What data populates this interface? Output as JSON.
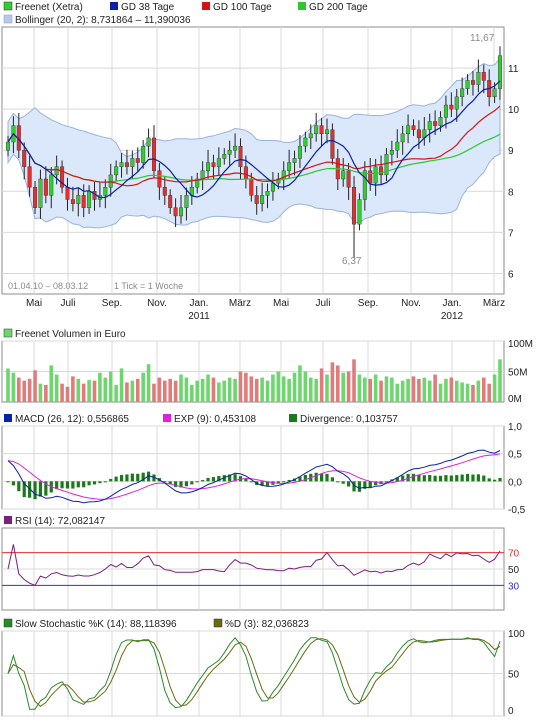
{
  "colors": {
    "frame": "#8c8c8c",
    "grid": "#d9d9d9",
    "band_fill": "#dbe8fb",
    "band_line": "#9ab3d8",
    "candle_up": "#33cc33",
    "candle_down": "#e03030",
    "wick": "#222222",
    "gd38": "#0a22a8",
    "gd100": "#d41414",
    "gd200": "#2ec72e",
    "vol_up": "#6ed66e",
    "vol_down": "#df7b7b",
    "macd": "#0a22a8",
    "exp": "#e020e0",
    "divergence": "#1a7a1a",
    "rsi": "#7a207a",
    "rsi_70": "#e03030",
    "rsi_30": "#3030c8",
    "stoch_k": "#2a8a2a",
    "stoch_d": "#6a6a10",
    "muted_text": "#8a8a8a"
  },
  "legend": {
    "freenet": "Freenet (Xetra)",
    "gd38": "GD 38 Tage",
    "gd100": "GD 100 Tage",
    "gd200": "GD 200 Tage",
    "bollinger": "Bollinger (20, 2): 8,731864 – 11,390036",
    "volume": "Freenet Volumen in Euro",
    "macd": "MACD (26, 12): 0,556865",
    "exp": "EXP (9): 0,453108",
    "divergence": "Divergence: 0,103757",
    "rsi": "RSI (14): 72,082147",
    "stoch_k": "Slow Stochastic %K (14): 88,118396",
    "stoch_d": "%D (3): 82,036823"
  },
  "price_annotations": {
    "period": "01.04.10 – 08.03.12",
    "tick": "1 Tick = 1 Woche",
    "high_label": "11,67",
    "low_label": "6,37"
  },
  "x_axis": {
    "months": [
      "Mai",
      "Juli",
      "Sep.",
      "Nov.",
      "Jan.",
      "März",
      "Mai",
      "Juli",
      "Sep.",
      "Nov.",
      "Jan.",
      "März"
    ],
    "years": [
      "2011",
      "2012"
    ]
  },
  "chart_data": [
    {
      "type": "candlestick",
      "title": "Freenet (Xetra)",
      "series_names": [
        "GD 38 Tage",
        "GD 100 Tage",
        "GD 200 Tage",
        "Bollinger (20, 2)"
      ],
      "ylim": [
        5.5,
        12.0
      ],
      "y_ticks": [
        "6",
        "7",
        "8",
        "9",
        "10",
        "11"
      ],
      "close": [
        9.2,
        9.6,
        9.0,
        8.6,
        8.1,
        7.6,
        8.3,
        7.9,
        8.4,
        8.6,
        8.1,
        7.8,
        7.7,
        7.9,
        7.6,
        8.0,
        7.8,
        7.9,
        8.1,
        8.4,
        8.6,
        8.7,
        8.6,
        8.8,
        8.7,
        9.1,
        9.3,
        8.5,
        8.1,
        7.9,
        7.6,
        7.4,
        7.6,
        7.9,
        8.1,
        8.3,
        8.5,
        8.7,
        8.6,
        8.8,
        8.9,
        9.0,
        9.1,
        8.6,
        8.3,
        7.9,
        7.7,
        7.9,
        8.0,
        8.2,
        8.3,
        8.5,
        8.7,
        8.8,
        9.1,
        9.3,
        9.4,
        9.6,
        9.4,
        9.5,
        8.8,
        8.3,
        8.5,
        8.1,
        7.2,
        7.8,
        8.5,
        8.2,
        8.6,
        8.4,
        8.9,
        9.0,
        9.2,
        9.4,
        9.6,
        9.5,
        9.3,
        9.5,
        9.7,
        9.6,
        9.8,
        10.1,
        10.0,
        10.3,
        10.5,
        10.7,
        10.6,
        10.9,
        10.7,
        10.3,
        10.5,
        11.3
      ],
      "volume_scale": "0M–100M",
      "volume_ticks": [
        "100M",
        "50M",
        "0M"
      ],
      "volume": [
        55,
        48,
        40,
        35,
        38,
        52,
        30,
        28,
        60,
        45,
        30,
        25,
        42,
        38,
        30,
        36,
        35,
        48,
        40,
        50,
        28,
        55,
        32,
        35,
        38,
        48,
        62,
        30,
        40,
        35,
        38,
        35,
        45,
        40,
        28,
        35,
        38,
        45,
        40,
        32,
        35,
        40,
        38,
        50,
        48,
        42,
        38,
        40,
        35,
        45,
        50,
        42,
        38,
        48,
        60,
        50,
        40,
        38,
        55,
        45,
        65,
        60,
        48,
        50,
        70,
        45,
        40,
        38,
        45,
        35,
        42,
        40,
        30,
        35,
        38,
        42,
        38,
        40,
        35,
        45,
        30,
        38,
        40,
        35,
        32,
        30,
        28,
        35,
        40,
        30,
        45,
        70
      ]
    },
    {
      "type": "line",
      "title": "MACD (26, 12)",
      "series_names": [
        "MACD (26, 12)",
        "EXP (9)",
        "Divergence"
      ],
      "ylim": [
        -0.5,
        1.0
      ],
      "y_ticks": [
        "1,0",
        "0,5",
        "0,0",
        "-0,5"
      ],
      "last_values": {
        "macd": 0.556865,
        "exp": 0.453108,
        "divergence": 0.103757
      }
    },
    {
      "type": "line",
      "title": "RSI (14)",
      "ylim": [
        0,
        100
      ],
      "y_ticks": [
        "70",
        "50",
        "30"
      ],
      "last_value": 72.082147
    },
    {
      "type": "line",
      "title": "Slow Stochastic",
      "series_names": [
        "%K (14)",
        "%D (3)"
      ],
      "ylim": [
        0,
        100
      ],
      "y_ticks": [
        "100",
        "50",
        "0"
      ],
      "last_values": {
        "k": 88.118396,
        "d": 82.036823
      }
    }
  ]
}
